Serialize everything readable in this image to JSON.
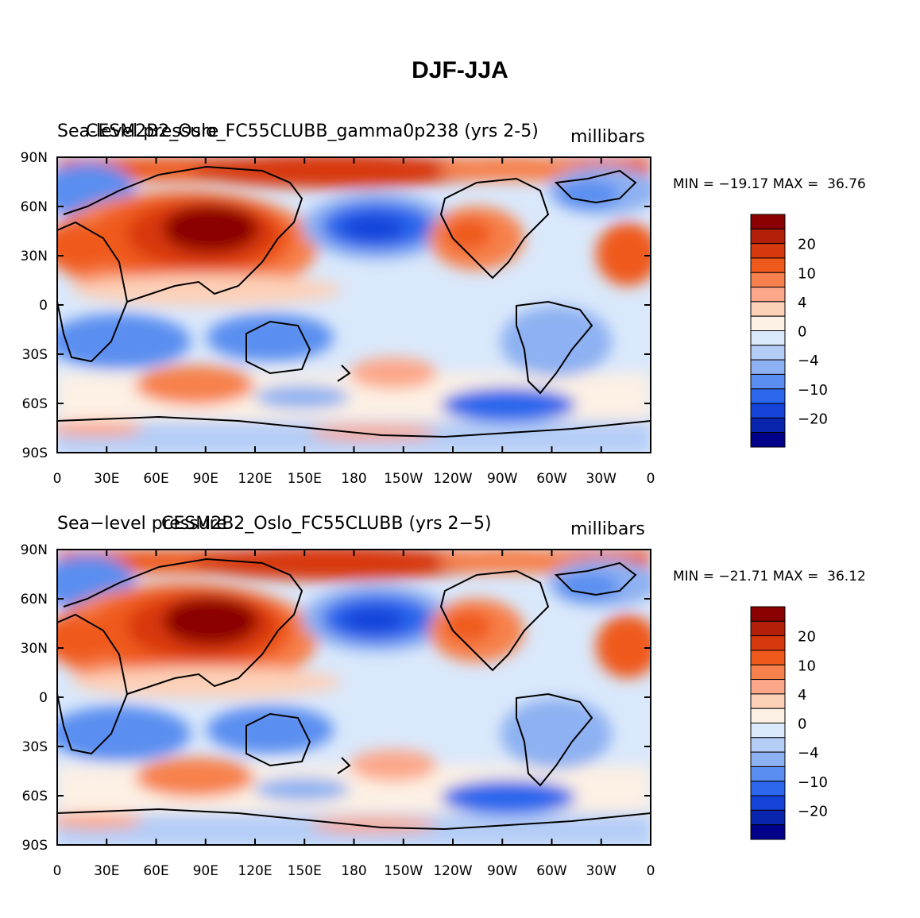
{
  "figure_title": "DJF-JJA",
  "panels": [
    {
      "left_title": "Sea-level pressure",
      "center_title": "CESM2B2_Oslo_FC55CLUBB_gamma0p238 (yrs 2-5)",
      "units": "millibars",
      "stats": "MIN = −19.17 MAX =  36.76",
      "min": -19.17,
      "max": 36.76
    },
    {
      "left_title": "Sea−level pressure",
      "center_title": "CESM2B2_Oslo_FC55CLUBB (yrs 2−5)",
      "units": "millibars",
      "stats": "MIN = −21.71 MAX =  36.12",
      "min": -21.71,
      "max": 36.12
    }
  ],
  "x_tick_labels": [
    "0",
    "30E",
    "60E",
    "90E",
    "120E",
    "150E",
    "180",
    "150W",
    "120W",
    "90W",
    "60W",
    "30W",
    "0"
  ],
  "y_tick_labels": [
    "90N",
    "60N",
    "30N",
    "0",
    "30S",
    "60S",
    "90S"
  ],
  "colorbar": {
    "colors": [
      "#8b0000",
      "#b2200a",
      "#d8380e",
      "#ef5a1c",
      "#f7814c",
      "#fca78a",
      "#fdd0b8",
      "#fdf0e4",
      "#dae8fb",
      "#b4cdf7",
      "#8db1f2",
      "#5a8ef0",
      "#2c66ec",
      "#1542d9",
      "#0a25ad",
      "#00008b"
    ],
    "labels": [
      {
        "text": "20",
        "boundary": 2
      },
      {
        "text": "10",
        "boundary": 4
      },
      {
        "text": "4",
        "boundary": 6
      },
      {
        "text": "0",
        "boundary": 8
      },
      {
        "text": "−4",
        "boundary": 10
      },
      {
        "text": "−10",
        "boundary": 12
      },
      {
        "text": "−20",
        "boundary": 14
      }
    ]
  }
}
